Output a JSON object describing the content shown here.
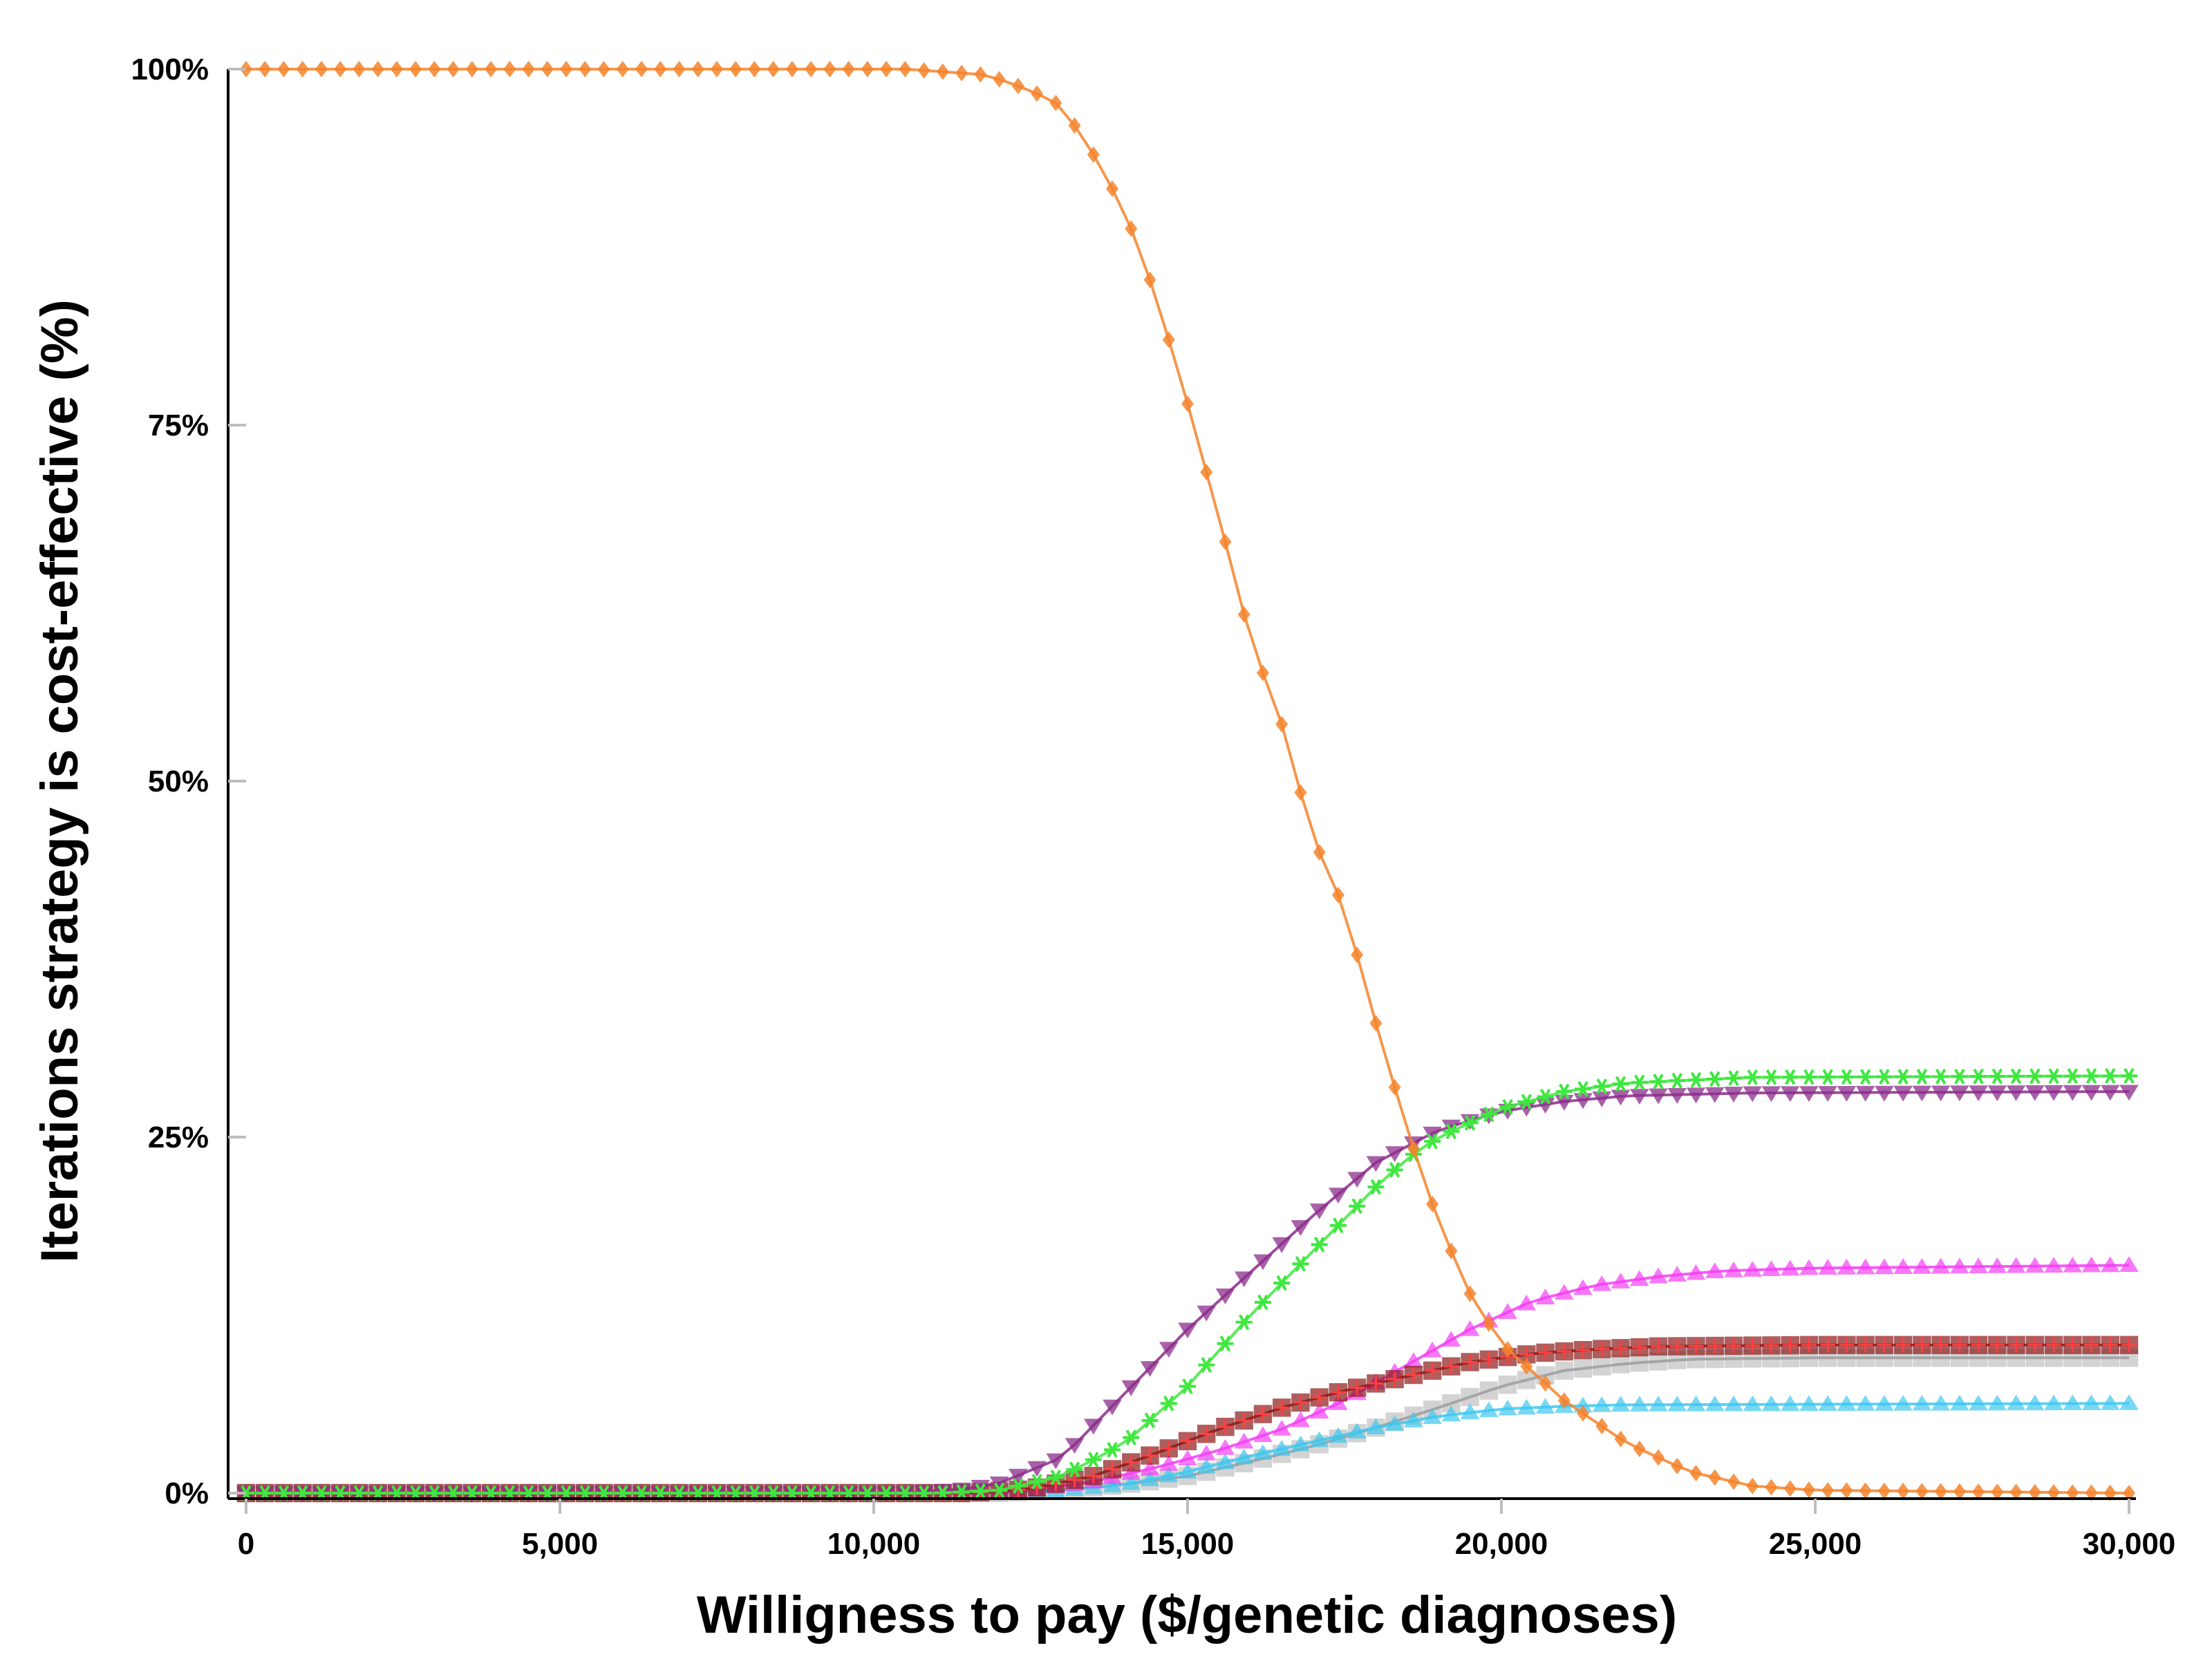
{
  "chart_data": {
    "type": "line",
    "title": "",
    "xlabel": "Willigness to pay ($/genetic diagnoses)",
    "ylabel": "Iterations strategy is cost-effective (%)",
    "xlim": [
      0,
      30000
    ],
    "ylim": [
      0,
      100
    ],
    "x_ticks": [
      {
        "value": 0,
        "label": "0"
      },
      {
        "value": 5000,
        "label": "5,000"
      },
      {
        "value": 10000,
        "label": "10,000"
      },
      {
        "value": 15000,
        "label": "15,000"
      },
      {
        "value": 20000,
        "label": "20,000"
      },
      {
        "value": 25000,
        "label": "25,000"
      },
      {
        "value": 30000,
        "label": "30,000"
      }
    ],
    "y_ticks": [
      {
        "value": 0,
        "label": "0%"
      },
      {
        "value": 25,
        "label": "25%"
      },
      {
        "value": 50,
        "label": "50%"
      },
      {
        "value": 75,
        "label": "75%"
      },
      {
        "value": 100,
        "label": "100%"
      }
    ],
    "grid": false,
    "legend": "none",
    "x_step": 300,
    "series": [
      {
        "id": "orange",
        "color": "#f4842c",
        "marker": "diamond",
        "anchors": [
          [
            0,
            100
          ],
          [
            10500,
            100
          ],
          [
            11800,
            99.6
          ],
          [
            12500,
            98.5
          ],
          [
            13000,
            97.4
          ],
          [
            13500,
            94
          ],
          [
            14000,
            90
          ],
          [
            14500,
            84
          ],
          [
            15000,
            76.5
          ],
          [
            15500,
            68.5
          ],
          [
            16000,
            60
          ],
          [
            16500,
            54
          ],
          [
            17000,
            46
          ],
          [
            17500,
            41
          ],
          [
            18000,
            33
          ],
          [
            18500,
            25.5
          ],
          [
            19000,
            19
          ],
          [
            19500,
            14
          ],
          [
            20000,
            10.5
          ],
          [
            21000,
            6.5
          ],
          [
            22000,
            3.5
          ],
          [
            23000,
            1.5
          ],
          [
            24000,
            0.5
          ],
          [
            25000,
            0.2
          ],
          [
            30000,
            0
          ]
        ]
      },
      {
        "id": "green",
        "color": "#3ee83e",
        "marker": "star",
        "anchors": [
          [
            0,
            0
          ],
          [
            11000,
            0
          ],
          [
            12000,
            0.2
          ],
          [
            13000,
            1.2
          ],
          [
            14000,
            3.5
          ],
          [
            15000,
            7.5
          ],
          [
            16000,
            12.5
          ],
          [
            17000,
            17
          ],
          [
            18000,
            21.5
          ],
          [
            18500,
            23.5
          ],
          [
            19000,
            25
          ],
          [
            20000,
            27
          ],
          [
            21000,
            28.2
          ],
          [
            22000,
            28.8
          ],
          [
            24000,
            29.2
          ],
          [
            30000,
            29.3
          ]
        ]
      },
      {
        "id": "purple",
        "color": "#8b2c8b",
        "marker": "triangle-down",
        "anchors": [
          [
            0,
            0
          ],
          [
            10500,
            0
          ],
          [
            11500,
            0.3
          ],
          [
            12000,
            0.7
          ],
          [
            13000,
            2.5
          ],
          [
            14000,
            7
          ],
          [
            15000,
            11.5
          ],
          [
            16000,
            15.5
          ],
          [
            17000,
            19.5
          ],
          [
            18000,
            23.2
          ],
          [
            19000,
            25.5
          ],
          [
            20000,
            26.8
          ],
          [
            21000,
            27.5
          ],
          [
            22000,
            27.9
          ],
          [
            24000,
            28.1
          ],
          [
            30000,
            28.2
          ]
        ]
      },
      {
        "id": "magenta",
        "color": "#f33ef3",
        "marker": "triangle-up",
        "anchors": [
          [
            0,
            0
          ],
          [
            11500,
            0
          ],
          [
            12500,
            0.2
          ],
          [
            13500,
            0.8
          ],
          [
            14500,
            1.8
          ],
          [
            15500,
            3
          ],
          [
            16500,
            4.5
          ],
          [
            17500,
            6.5
          ],
          [
            18500,
            9
          ],
          [
            19500,
            11.5
          ],
          [
            20500,
            13.5
          ],
          [
            21500,
            14.6
          ],
          [
            22500,
            15.2
          ],
          [
            23500,
            15.6
          ],
          [
            25000,
            15.8
          ],
          [
            30000,
            16
          ]
        ]
      },
      {
        "id": "darkred",
        "color": "#8b1a1a",
        "marker": "square-cross",
        "anchors": [
          [
            0,
            0
          ],
          [
            11500,
            0
          ],
          [
            12500,
            0.3
          ],
          [
            13500,
            1.2
          ],
          [
            14500,
            2.8
          ],
          [
            15500,
            4.5
          ],
          [
            16500,
            6
          ],
          [
            17500,
            7.2
          ],
          [
            18500,
            8.2
          ],
          [
            19500,
            9.2
          ],
          [
            20500,
            9.8
          ],
          [
            21500,
            10.1
          ],
          [
            22500,
            10.3
          ],
          [
            25000,
            10.4
          ],
          [
            30000,
            10.4
          ]
        ]
      },
      {
        "id": "gray",
        "color": "#9e9e9e",
        "marker": "square",
        "anchors": [
          [
            0,
            0
          ],
          [
            12000,
            0
          ],
          [
            13000,
            0.2
          ],
          [
            14000,
            0.6
          ],
          [
            15000,
            1.2
          ],
          [
            16000,
            2.2
          ],
          [
            17000,
            3.3
          ],
          [
            18000,
            4.6
          ],
          [
            19000,
            6
          ],
          [
            20000,
            7.5
          ],
          [
            21000,
            8.6
          ],
          [
            22000,
            9.1
          ],
          [
            23000,
            9.4
          ],
          [
            25000,
            9.5
          ],
          [
            30000,
            9.5
          ]
        ]
      },
      {
        "id": "skyblue",
        "color": "#3ec8f0",
        "marker": "triangle-up",
        "anchors": [
          [
            0,
            0
          ],
          [
            12000,
            0
          ],
          [
            13000,
            0.2
          ],
          [
            14000,
            0.6
          ],
          [
            15000,
            1.5
          ],
          [
            16000,
            2.6
          ],
          [
            17000,
            3.6
          ],
          [
            18000,
            4.6
          ],
          [
            19000,
            5.4
          ],
          [
            20000,
            5.9
          ],
          [
            21000,
            6.1
          ],
          [
            22000,
            6.2
          ],
          [
            30000,
            6.3
          ]
        ]
      }
    ]
  }
}
